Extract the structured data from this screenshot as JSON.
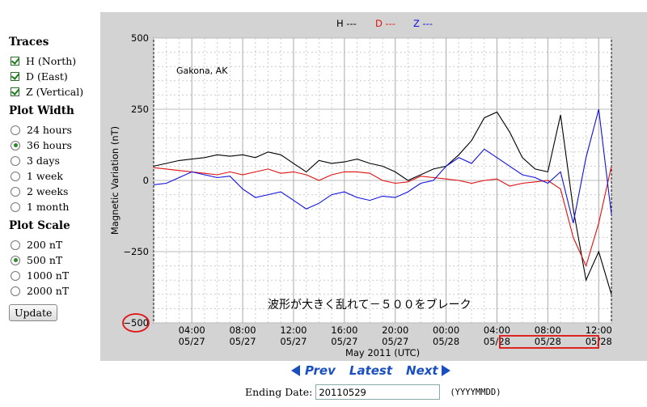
{
  "sidebar": {
    "traces_title": "Traces",
    "traces": [
      {
        "label": "H (North)",
        "checked": true
      },
      {
        "label": "D (East)",
        "checked": true
      },
      {
        "label": "Z (Vertical)",
        "checked": true
      }
    ],
    "width_title": "Plot Width",
    "widths": [
      {
        "label": "24 hours",
        "selected": false
      },
      {
        "label": "36 hours",
        "selected": true
      },
      {
        "label": "3 days",
        "selected": false
      },
      {
        "label": "1 week",
        "selected": false
      },
      {
        "label": "2 weeks",
        "selected": false
      },
      {
        "label": "1 month",
        "selected": false
      }
    ],
    "scale_title": "Plot Scale",
    "scales": [
      {
        "label": "200 nT",
        "selected": false
      },
      {
        "label": "500 nT",
        "selected": true
      },
      {
        "label": "1000 nT",
        "selected": false
      },
      {
        "label": "2000 nT",
        "selected": false
      }
    ],
    "update_label": "Update"
  },
  "chart_data": {
    "type": "line",
    "station": "Gakona, AK",
    "ylabel": "Magnetic Variation (nT)",
    "xlabel": "May 2011 (UTC)",
    "ylim": [
      -500,
      500
    ],
    "yticks": [
      500,
      250,
      0,
      -250,
      -500
    ],
    "xticks": [
      {
        "time": "04:00",
        "date": "05/27"
      },
      {
        "time": "08:00",
        "date": "05/27"
      },
      {
        "time": "12:00",
        "date": "05/27"
      },
      {
        "time": "16:00",
        "date": "05/27"
      },
      {
        "time": "20:00",
        "date": "05/27"
      },
      {
        "time": "00:00",
        "date": "05/28"
      },
      {
        "time": "04:00",
        "date": "05/28"
      },
      {
        "time": "08:00",
        "date": "05/28"
      },
      {
        "time": "12:00",
        "date": "05/28"
      }
    ],
    "legend": [
      {
        "label": "H ---",
        "color": "#000000"
      },
      {
        "label": "D ---",
        "color": "#e01010"
      },
      {
        "label": "Z ---",
        "color": "#1010e0"
      }
    ],
    "grid": true,
    "hours_span": 36,
    "series": [
      {
        "name": "H",
        "color": "#000000",
        "points": [
          [
            0,
            50
          ],
          [
            1,
            60
          ],
          [
            2,
            70
          ],
          [
            3,
            75
          ],
          [
            4,
            80
          ],
          [
            5,
            90
          ],
          [
            6,
            85
          ],
          [
            7,
            90
          ],
          [
            8,
            80
          ],
          [
            9,
            100
          ],
          [
            10,
            90
          ],
          [
            11,
            60
          ],
          [
            12,
            30
          ],
          [
            13,
            70
          ],
          [
            14,
            60
          ],
          [
            15,
            65
          ],
          [
            16,
            75
          ],
          [
            17,
            60
          ],
          [
            18,
            50
          ],
          [
            19,
            30
          ],
          [
            20,
            0
          ],
          [
            21,
            20
          ],
          [
            22,
            40
          ],
          [
            23,
            50
          ],
          [
            24,
            90
          ],
          [
            25,
            140
          ],
          [
            26,
            220
          ],
          [
            27,
            240
          ],
          [
            28,
            170
          ],
          [
            29,
            80
          ],
          [
            30,
            40
          ],
          [
            31,
            30
          ],
          [
            32,
            230
          ],
          [
            33,
            -100
          ],
          [
            34,
            -350
          ],
          [
            35,
            -250
          ],
          [
            36,
            -400
          ]
        ]
      },
      {
        "name": "D",
        "color": "#e01010",
        "points": [
          [
            0,
            45
          ],
          [
            1,
            40
          ],
          [
            2,
            35
          ],
          [
            3,
            30
          ],
          [
            4,
            25
          ],
          [
            5,
            20
          ],
          [
            6,
            30
          ],
          [
            7,
            20
          ],
          [
            8,
            30
          ],
          [
            9,
            40
          ],
          [
            10,
            25
          ],
          [
            11,
            30
          ],
          [
            12,
            20
          ],
          [
            13,
            0
          ],
          [
            14,
            20
          ],
          [
            15,
            30
          ],
          [
            16,
            30
          ],
          [
            17,
            25
          ],
          [
            18,
            0
          ],
          [
            19,
            -10
          ],
          [
            20,
            -5
          ],
          [
            21,
            15
          ],
          [
            22,
            10
          ],
          [
            23,
            5
          ],
          [
            24,
            0
          ],
          [
            25,
            -10
          ],
          [
            26,
            0
          ],
          [
            27,
            5
          ],
          [
            28,
            -20
          ],
          [
            29,
            -10
          ],
          [
            30,
            -5
          ],
          [
            31,
            0
          ],
          [
            32,
            -30
          ],
          [
            33,
            -200
          ],
          [
            34,
            -300
          ],
          [
            35,
            -150
          ],
          [
            36,
            50
          ]
        ]
      },
      {
        "name": "Z",
        "color": "#1010e0",
        "points": [
          [
            0,
            -15
          ],
          [
            1,
            -10
          ],
          [
            2,
            10
          ],
          [
            3,
            30
          ],
          [
            4,
            20
          ],
          [
            5,
            10
          ],
          [
            6,
            15
          ],
          [
            7,
            -30
          ],
          [
            8,
            -60
          ],
          [
            9,
            -50
          ],
          [
            10,
            -40
          ],
          [
            11,
            -70
          ],
          [
            12,
            -100
          ],
          [
            13,
            -80
          ],
          [
            14,
            -50
          ],
          [
            15,
            -40
          ],
          [
            16,
            -60
          ],
          [
            17,
            -70
          ],
          [
            18,
            -55
          ],
          [
            19,
            -60
          ],
          [
            20,
            -40
          ],
          [
            21,
            -10
          ],
          [
            22,
            0
          ],
          [
            23,
            50
          ],
          [
            24,
            80
          ],
          [
            25,
            60
          ],
          [
            26,
            110
          ],
          [
            27,
            80
          ],
          [
            28,
            50
          ],
          [
            29,
            20
          ],
          [
            30,
            10
          ],
          [
            31,
            -10
          ],
          [
            32,
            30
          ],
          [
            33,
            -150
          ],
          [
            34,
            80
          ],
          [
            35,
            250
          ],
          [
            36,
            -120
          ]
        ]
      }
    ]
  },
  "annotation": {
    "text": "波形が大きく乱れて－５００をブレーク"
  },
  "nav": {
    "prev": "Prev",
    "latest": "Latest",
    "next": "Next"
  },
  "ending_date": {
    "label": "Ending Date:",
    "value": "20110529",
    "format": "(YYYYMMDD)"
  }
}
